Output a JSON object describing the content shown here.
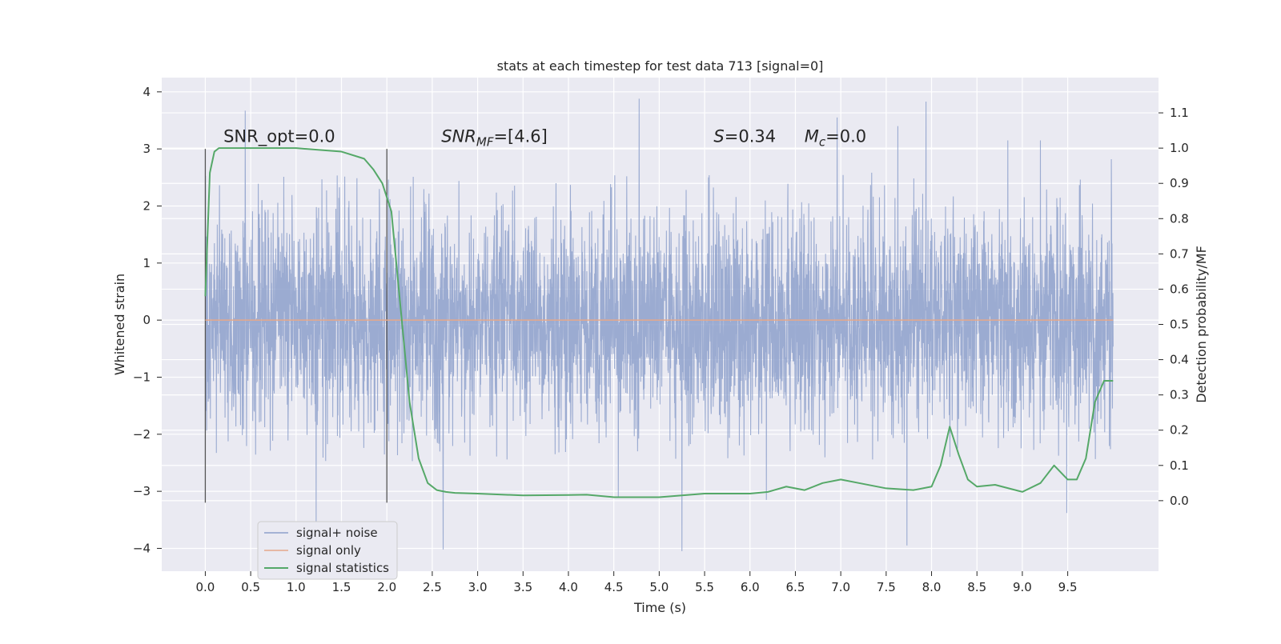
{
  "chart_data": {
    "type": "line",
    "title": "stats at each timestep for test data 713 [signal=0]",
    "xlabel": "Time (s)",
    "ylabel_left": "Whitened strain",
    "ylabel_right": "Detection probability/MF",
    "xlim": [
      -0.48,
      10.5
    ],
    "ylim_left": [
      -4.4,
      4.25
    ],
    "ylim_right": [
      -0.2,
      1.2
    ],
    "x_ticks": [
      0.0,
      0.5,
      1.0,
      1.5,
      2.0,
      2.5,
      3.0,
      3.5,
      4.0,
      4.5,
      5.0,
      5.5,
      6.0,
      6.5,
      7.0,
      7.5,
      8.0,
      8.5,
      9.0,
      9.5
    ],
    "x_tick_labels": [
      "0.0",
      "0.5",
      "1.0",
      "1.5",
      "2.0",
      "2.5",
      "3.0",
      "3.5",
      "4.0",
      "4.5",
      "5.0",
      "5.5",
      "6.0",
      "6.5",
      "7.0",
      "7.5",
      "8.0",
      "8.5",
      "9.0",
      "9.5"
    ],
    "y_ticks_left": [
      -4,
      -3,
      -2,
      -1,
      0,
      1,
      2,
      3,
      4
    ],
    "y_tick_labels_left": [
      "−4",
      "−3",
      "−2",
      "−1",
      "0",
      "1",
      "2",
      "3",
      "4"
    ],
    "y_ticks_right": [
      0.0,
      0.1,
      0.2,
      0.3,
      0.4,
      0.5,
      0.6,
      0.7,
      0.8,
      0.9,
      1.0,
      1.1
    ],
    "y_tick_labels_right": [
      "0.0",
      "0.1",
      "0.2",
      "0.3",
      "0.4",
      "0.5",
      "0.6",
      "0.7",
      "0.8",
      "0.9",
      "1.0",
      "1.1"
    ],
    "grid": true,
    "legend_position": "lower-left",
    "vertical_lines": [
      {
        "x": 0.0,
        "ymin": -3.2,
        "ymax": 3.0
      },
      {
        "x": 2.0,
        "ymin": -3.2,
        "ymax": 3.0
      }
    ],
    "annotations": [
      {
        "text": "SNR_opt=0.0",
        "x": 0.2,
        "y": 3.12
      },
      {
        "text": "SNR_MF=[4.6]",
        "x": 2.6,
        "y": 3.12
      },
      {
        "text": "S=0.34",
        "x": 5.6,
        "y": 3.12
      },
      {
        "text": "M_c=0.0",
        "x": 6.6,
        "y": 3.12
      }
    ],
    "series": [
      {
        "name": "signal+ noise",
        "color": "#8da0cb",
        "axis": "left",
        "x_range": [
          0.0,
          10.0
        ],
        "sample_count": 4096,
        "spread": [
          -2.5,
          2.6
        ],
        "peaks": [
          {
            "x": 0.44,
            "y": 3.67
          },
          {
            "x": 4.78,
            "y": 3.88
          },
          {
            "x": 7.94,
            "y": 3.83
          },
          {
            "x": 6.96,
            "y": 3.55
          },
          {
            "x": 7.63,
            "y": 3.4
          },
          {
            "x": 8.84,
            "y": 3.15
          },
          {
            "x": 9.2,
            "y": 3.15
          },
          {
            "x": 9.98,
            "y": 2.82
          },
          {
            "x": 2.62,
            "y": -4.02
          },
          {
            "x": 5.25,
            "y": -4.05
          },
          {
            "x": 7.73,
            "y": -3.95
          },
          {
            "x": 1.22,
            "y": -3.6
          },
          {
            "x": 9.49,
            "y": -3.38
          },
          {
            "x": 4.55,
            "y": -3.1
          },
          {
            "x": 6.18,
            "y": -3.15
          }
        ]
      },
      {
        "name": "signal only",
        "color": "#e5a88a",
        "axis": "left",
        "x": [
          0.0,
          10.0
        ],
        "y": [
          0.0,
          0.0
        ]
      },
      {
        "name": "signal statistics",
        "color": "#55a868",
        "axis": "right",
        "x": [
          0.0,
          0.05,
          0.1,
          0.15,
          0.25,
          0.5,
          1.0,
          1.5,
          1.75,
          1.85,
          1.95,
          2.05,
          2.15,
          2.25,
          2.35,
          2.45,
          2.55,
          2.65,
          2.75,
          3.0,
          3.5,
          4.0,
          4.2,
          4.5,
          5.0,
          5.5,
          6.0,
          6.2,
          6.4,
          6.6,
          6.8,
          7.0,
          7.2,
          7.5,
          7.8,
          8.0,
          8.1,
          8.2,
          8.3,
          8.4,
          8.5,
          8.7,
          9.0,
          9.2,
          9.35,
          9.5,
          9.6,
          9.7,
          9.8,
          9.9,
          10.0
        ],
        "y": [
          0.58,
          0.93,
          0.99,
          1.0,
          1.0,
          1.0,
          1.0,
          0.99,
          0.97,
          0.94,
          0.9,
          0.82,
          0.55,
          0.28,
          0.12,
          0.05,
          0.03,
          0.025,
          0.022,
          0.02,
          0.015,
          0.016,
          0.017,
          0.01,
          0.01,
          0.02,
          0.02,
          0.025,
          0.04,
          0.03,
          0.05,
          0.06,
          0.05,
          0.035,
          0.03,
          0.04,
          0.1,
          0.21,
          0.13,
          0.06,
          0.04,
          0.045,
          0.025,
          0.05,
          0.1,
          0.06,
          0.06,
          0.12,
          0.28,
          0.34,
          0.34
        ]
      }
    ]
  }
}
